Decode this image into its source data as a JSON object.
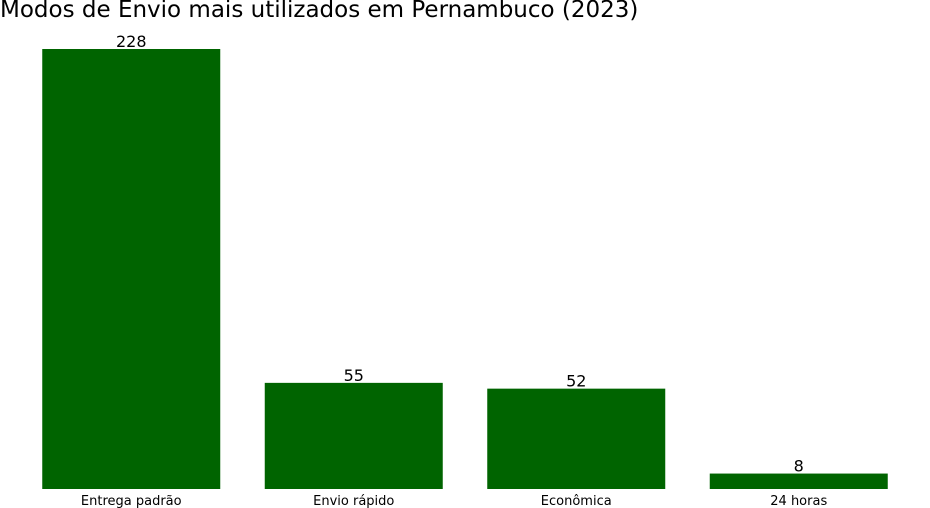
{
  "chart_data": {
    "type": "bar",
    "title": "Modos de Envio mais utilizados em Pernambuco (2023)",
    "xlabel": "",
    "ylabel": "",
    "categories": [
      "Entrega padrão",
      "Envio rápido",
      "Econômica",
      "24 horas"
    ],
    "values": [
      228,
      55,
      52,
      8
    ],
    "data_labels": [
      "228",
      "55",
      "52",
      "8"
    ],
    "ylim": [
      0,
      228
    ],
    "bar_color": "#006400",
    "grid": false,
    "y_axis_visible": false
  }
}
